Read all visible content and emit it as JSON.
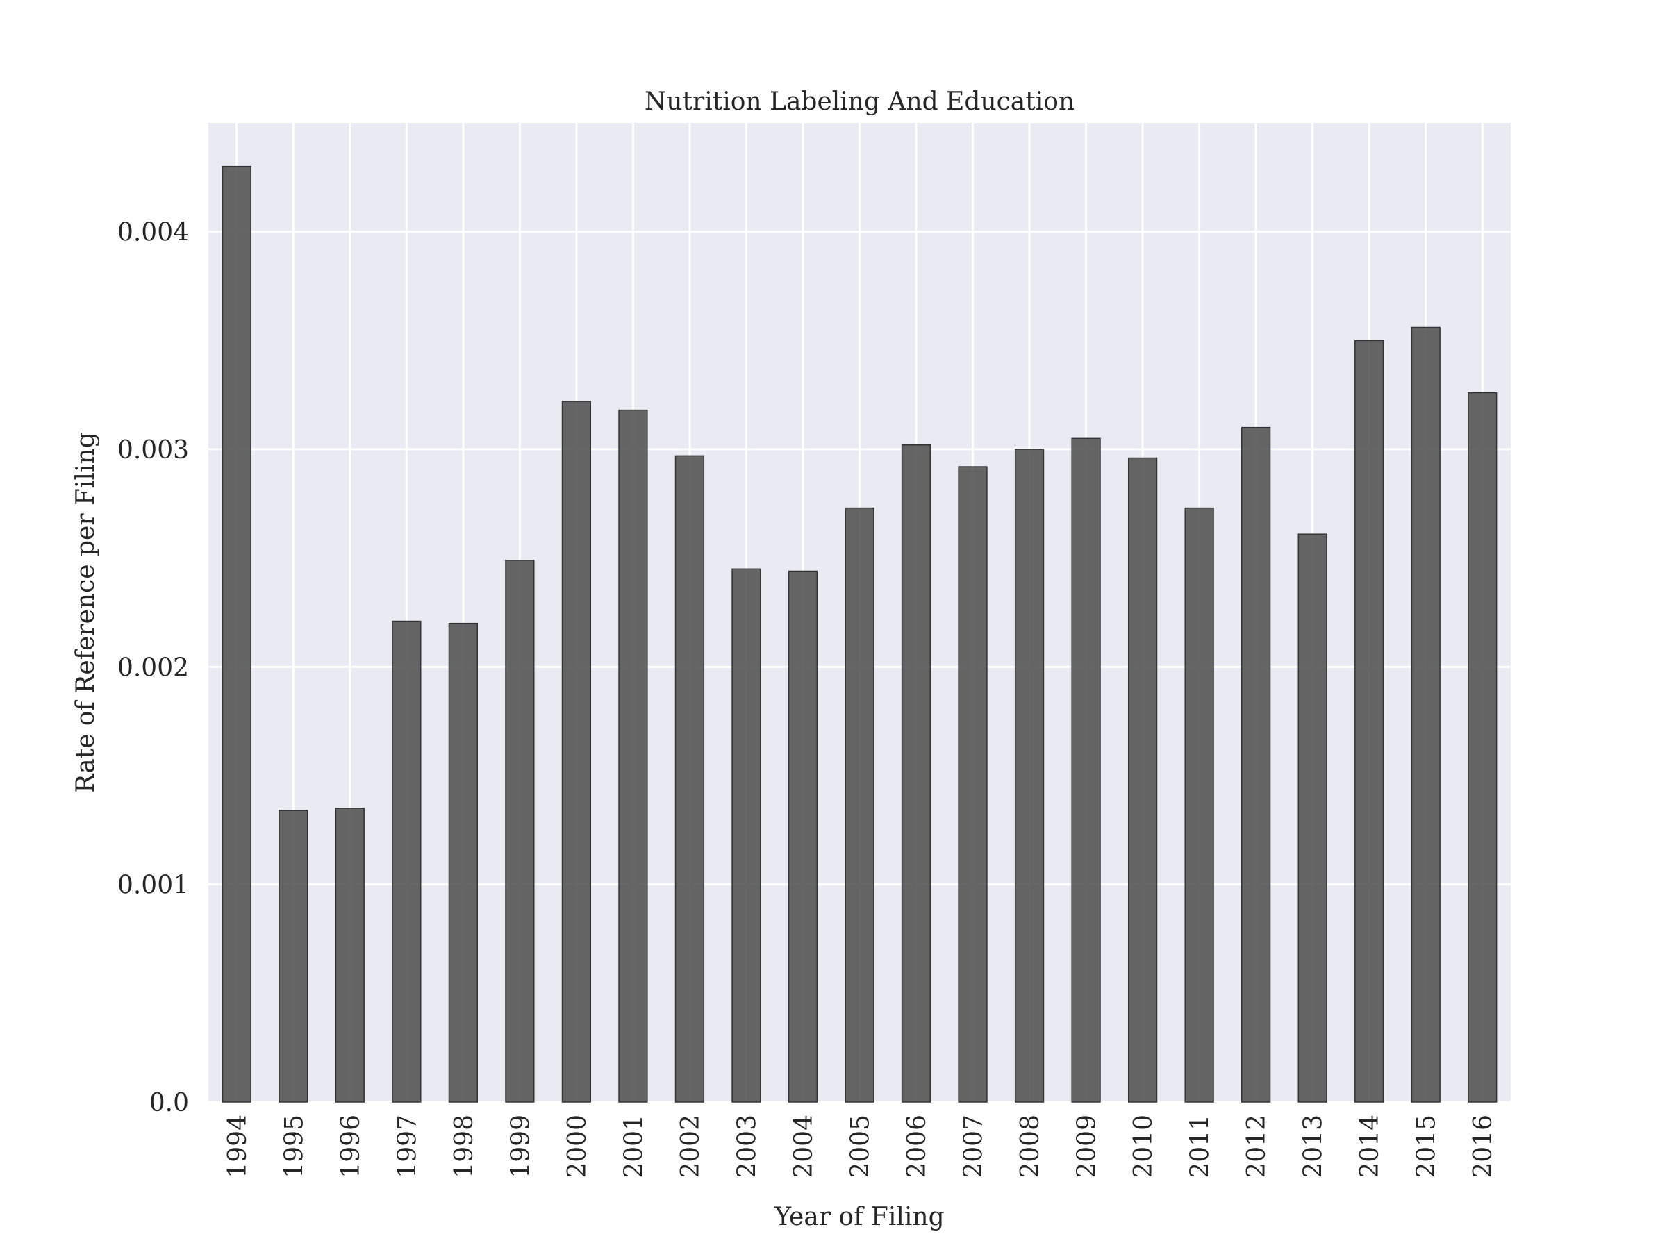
{
  "chart_data": {
    "type": "bar",
    "title": "Nutrition Labeling And Education",
    "xlabel": "Year of Filing",
    "ylabel": "Rate of Reference per Filing",
    "categories": [
      "1994",
      "1995",
      "1996",
      "1997",
      "1998",
      "1999",
      "2000",
      "2001",
      "2002",
      "2003",
      "2004",
      "2005",
      "2006",
      "2007",
      "2008",
      "2009",
      "2010",
      "2011",
      "2012",
      "2013",
      "2014",
      "2015",
      "2016"
    ],
    "values": [
      0.0043,
      0.00134,
      0.00135,
      0.00221,
      0.0022,
      0.00249,
      0.00322,
      0.00318,
      0.00297,
      0.00245,
      0.00244,
      0.00273,
      0.00302,
      0.00292,
      0.003,
      0.00305,
      0.00296,
      0.00273,
      0.0031,
      0.00261,
      0.0035,
      0.00356,
      0.00326
    ],
    "yticks": [
      0.0,
      0.001,
      0.002,
      0.003,
      0.004
    ],
    "ytick_labels": [
      "0.0",
      "0.001",
      "0.002",
      "0.003",
      "0.004"
    ],
    "ylim": [
      0,
      0.0045
    ],
    "grid": true,
    "colors": {
      "plot_background": "#eaeaf2",
      "grid": "#ffffff",
      "bar_fill": "#555555",
      "bar_edge": "#333333",
      "text": "#262626"
    }
  }
}
